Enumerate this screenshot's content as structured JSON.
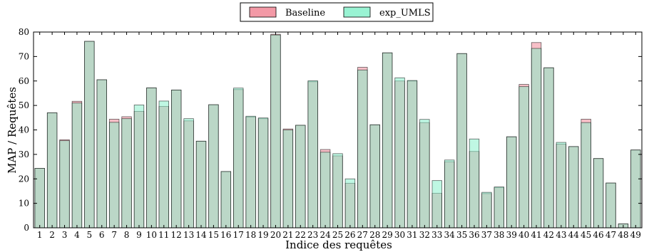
{
  "chart_data": {
    "type": "bar",
    "xlabel": "Indice des requêtes",
    "ylabel": "MAP / Requêtes",
    "ylim": [
      0,
      80
    ],
    "yticks": [
      "0",
      "10",
      "20",
      "30",
      "40",
      "50",
      "60",
      "70",
      "80"
    ],
    "categories": [
      "1",
      "2",
      "3",
      "4",
      "5",
      "6",
      "7",
      "8",
      "9",
      "10",
      "11",
      "12",
      "13",
      "14",
      "15",
      "16",
      "17",
      "18",
      "19",
      "20",
      "21",
      "22",
      "23",
      "24",
      "25",
      "26",
      "27",
      "28",
      "29",
      "30",
      "31",
      "32",
      "33",
      "34",
      "35",
      "36",
      "37",
      "38",
      "39",
      "40",
      "41",
      "42",
      "43",
      "44",
      "45",
      "46",
      "47",
      "48",
      "49"
    ],
    "legend_position": "top-center",
    "series": [
      {
        "name": "Baseline",
        "color": "#f08090",
        "values": [
          24.3,
          47,
          36,
          51.7,
          76.2,
          60.5,
          44.4,
          45.4,
          47.6,
          57.2,
          49.6,
          56.3,
          43.7,
          35.4,
          50.3,
          23,
          56.5,
          45.3,
          44.6,
          79.1,
          40.4,
          41.9,
          59.7,
          32,
          29.4,
          18.2,
          65.6,
          42.1,
          71.5,
          60,
          60,
          43,
          14.1,
          27,
          71.2,
          31.2,
          14,
          16.4,
          37.2,
          58.6,
          75.7,
          65.4,
          34.2,
          33.2,
          44.4,
          28.3,
          18.3,
          1.6,
          31.8
        ]
      },
      {
        "name": "exp_UMLS",
        "color": "#80f0c8",
        "values": [
          24.3,
          47,
          35.6,
          51,
          76.2,
          60.5,
          43.1,
          44.6,
          50.2,
          57.2,
          51.8,
          56.3,
          44.6,
          35.4,
          50.3,
          23,
          57.1,
          45.6,
          44.9,
          78.8,
          40,
          41.9,
          60.1,
          30.9,
          30.3,
          20,
          64.5,
          42.1,
          71.5,
          61.3,
          60.2,
          44.3,
          19.3,
          27.7,
          71.2,
          36.3,
          14.5,
          16.7,
          37.2,
          57.7,
          73.3,
          65.4,
          34.9,
          33.2,
          43,
          28.3,
          18.3,
          1.6,
          31.8
        ]
      }
    ]
  }
}
